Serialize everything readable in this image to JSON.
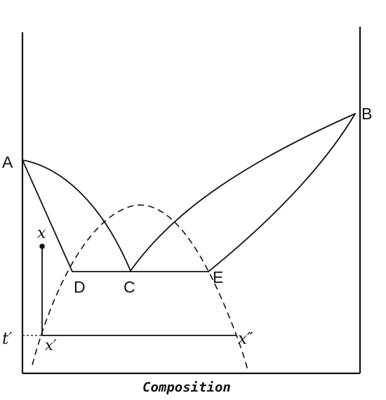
{
  "diagram": {
    "point_labels": {
      "a": "A",
      "b": "B",
      "c": "C",
      "d": "D",
      "e": "E"
    },
    "italic_labels": {
      "x": "x",
      "t_prime": "t′",
      "x_prime": "x′",
      "x_double_prime": "x″"
    },
    "axis_label": "Composition",
    "colors": {
      "ink": "#111111",
      "background": "#ffffff"
    }
  }
}
